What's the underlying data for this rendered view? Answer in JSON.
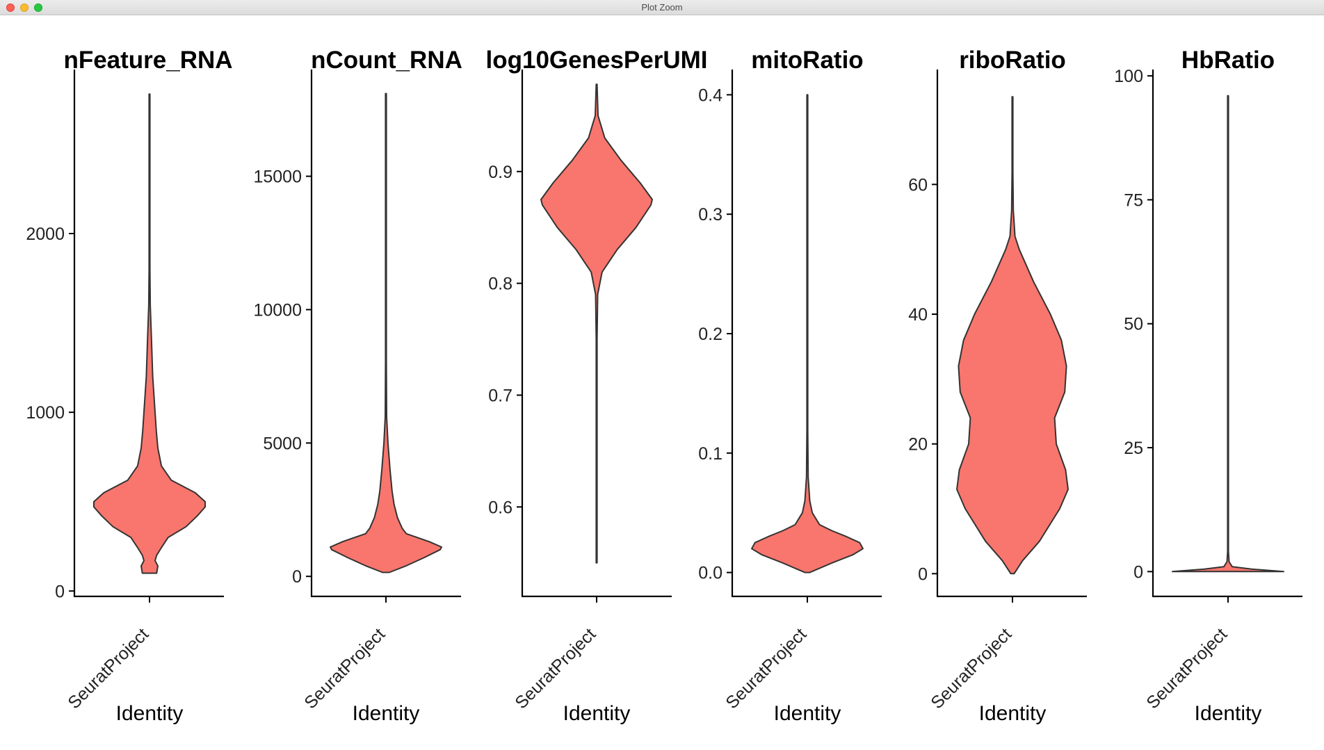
{
  "window": {
    "title": "Plot Zoom"
  },
  "colors": {
    "fill": "#F8766D",
    "outline": "#333333",
    "axis": "#000000"
  },
  "chart_data": [
    {
      "type": "violin",
      "title": "nFeature_RNA",
      "xlabel": "Identity",
      "category": "SeuratProject",
      "ylim": [
        -30,
        2910
      ],
      "yticks": [
        0,
        1000,
        2000
      ],
      "data_max": 2780,
      "profile": [
        [
          100,
          18
        ],
        [
          140,
          21
        ],
        [
          170,
          14
        ],
        [
          200,
          18
        ],
        [
          240,
          29
        ],
        [
          300,
          47
        ],
        [
          360,
          92
        ],
        [
          420,
          120
        ],
        [
          470,
          140
        ],
        [
          500,
          140
        ],
        [
          550,
          115
        ],
        [
          620,
          55
        ],
        [
          700,
          30
        ],
        [
          800,
          21
        ],
        [
          900,
          17
        ],
        [
          1000,
          14
        ],
        [
          1200,
          8
        ],
        [
          1400,
          5
        ],
        [
          1600,
          2
        ],
        [
          1800,
          0.6
        ],
        [
          2200,
          0.3
        ],
        [
          2780,
          0.3
        ]
      ]
    },
    {
      "type": "violin",
      "title": "nCount_RNA",
      "xlabel": "Identity",
      "category": "SeuratProject",
      "ylim": [
        -750,
        18950
      ],
      "yticks": [
        0,
        5000,
        10000,
        15000
      ],
      "data_max": 18100,
      "profile": [
        [
          150,
          5
        ],
        [
          400,
          30
        ],
        [
          700,
          56
        ],
        [
          1000,
          80
        ],
        [
          1100,
          82
        ],
        [
          1300,
          64
        ],
        [
          1600,
          30
        ],
        [
          1800,
          24
        ],
        [
          2200,
          17
        ],
        [
          2700,
          12
        ],
        [
          3200,
          9
        ],
        [
          4000,
          6
        ],
        [
          5000,
          3
        ],
        [
          6000,
          1
        ],
        [
          8000,
          0.6
        ],
        [
          12000,
          0.4
        ],
        [
          18100,
          0.3
        ]
      ]
    },
    {
      "type": "violin",
      "title": "log10GenesPerUMI",
      "xlabel": "Identity",
      "category": "SeuratProject",
      "ylim": [
        0.52,
        0.99
      ],
      "yticks": [
        0.6,
        0.7,
        0.8,
        0.9
      ],
      "data_min": 0.55,
      "data_max": 0.978,
      "profile": [
        [
          0.55,
          0.3
        ],
        [
          0.75,
          0.6
        ],
        [
          0.79,
          1.5
        ],
        [
          0.81,
          8
        ],
        [
          0.83,
          30
        ],
        [
          0.85,
          58
        ],
        [
          0.87,
          80
        ],
        [
          0.875,
          82
        ],
        [
          0.89,
          64
        ],
        [
          0.91,
          36
        ],
        [
          0.93,
          12
        ],
        [
          0.95,
          2
        ],
        [
          0.978,
          0.3
        ]
      ]
    },
    {
      "type": "violin",
      "title": "mitoRatio",
      "xlabel": "Identity",
      "category": "SeuratProject",
      "ylim": [
        -0.02,
        0.42
      ],
      "yticks": [
        0.0,
        0.1,
        0.2,
        0.3,
        0.4
      ],
      "data_max": 0.4,
      "profile": [
        [
          0,
          3
        ],
        [
          0.008,
          30
        ],
        [
          0.015,
          56
        ],
        [
          0.02,
          68
        ],
        [
          0.025,
          64
        ],
        [
          0.03,
          48
        ],
        [
          0.035,
          30
        ],
        [
          0.04,
          15
        ],
        [
          0.05,
          6
        ],
        [
          0.06,
          3
        ],
        [
          0.08,
          1
        ],
        [
          0.12,
          0.5
        ],
        [
          0.4,
          0.3
        ]
      ]
    },
    {
      "type": "violin",
      "title": "riboRatio",
      "xlabel": "Identity",
      "category": "SeuratProject",
      "ylim": [
        -3.5,
        77.5
      ],
      "yticks": [
        0,
        20,
        40,
        60
      ],
      "data_max": 73.5,
      "profile": [
        [
          0,
          2
        ],
        [
          2,
          12
        ],
        [
          5,
          32
        ],
        [
          10,
          56
        ],
        [
          13,
          66
        ],
        [
          16,
          63
        ],
        [
          20,
          52
        ],
        [
          24,
          50
        ],
        [
          28,
          62
        ],
        [
          32,
          64
        ],
        [
          36,
          58
        ],
        [
          40,
          45
        ],
        [
          45,
          25
        ],
        [
          50,
          8
        ],
        [
          52,
          3
        ],
        [
          56,
          1
        ],
        [
          62,
          0.5
        ],
        [
          73.5,
          0.3
        ]
      ]
    },
    {
      "type": "violin",
      "title": "HbRatio",
      "xlabel": "Identity",
      "category": "SeuratProject",
      "ylim": [
        -5,
        101
      ],
      "yticks": [
        0,
        25,
        50,
        75,
        100
      ],
      "data_max": 96,
      "profile": [
        [
          0,
          82
        ],
        [
          0.5,
          35
        ],
        [
          1,
          6
        ],
        [
          2,
          1.5
        ],
        [
          4,
          0.6
        ],
        [
          96,
          0.3
        ]
      ]
    }
  ]
}
